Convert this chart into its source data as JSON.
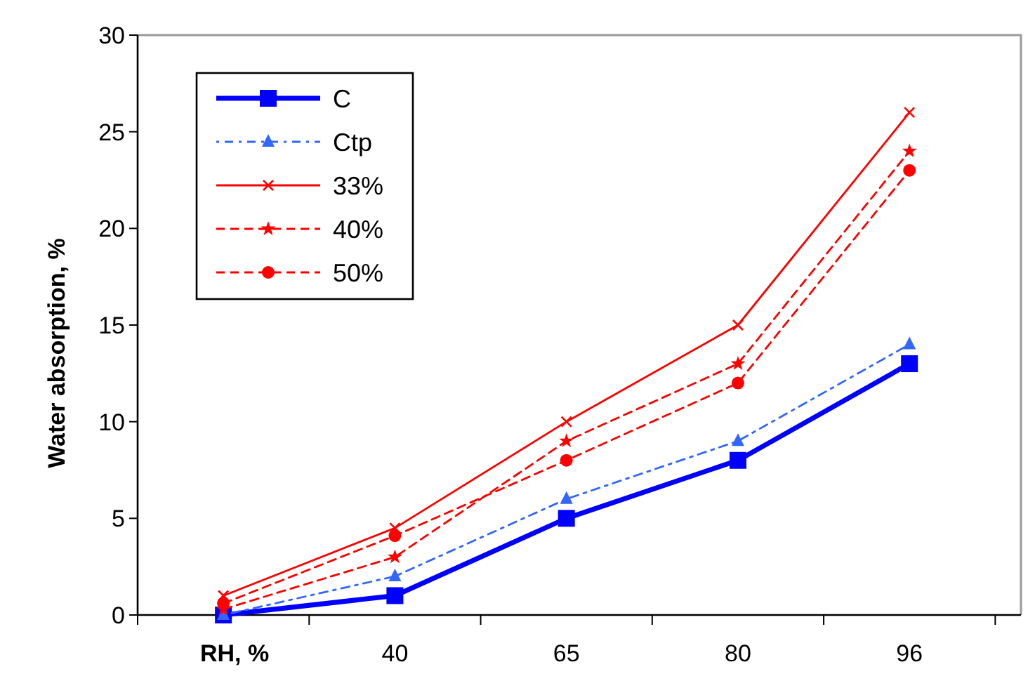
{
  "chart_data": {
    "type": "line",
    "ylabel": "Water absorption,  %",
    "xlabel": "RH,  %",
    "categories": [
      null,
      "40",
      "65",
      "80",
      "96"
    ],
    "ylim": [
      0,
      30
    ],
    "yticks": [
      0,
      5,
      10,
      15,
      20,
      25,
      30
    ],
    "grid": false,
    "legend": "top left",
    "series": [
      {
        "name": "C",
        "color": "#0000ff",
        "marker": "square",
        "line_style": "solid",
        "values": [
          0,
          1,
          5,
          8,
          13
        ]
      },
      {
        "name": "Ctp",
        "color": "#3366ff",
        "marker": "triangle",
        "line_style": "dotted",
        "values": [
          0,
          2,
          6,
          9,
          14
        ]
      },
      {
        "name": "33%",
        "color": "#ff0000",
        "marker": "cross",
        "line_style": "solid",
        "values": [
          1,
          4.5,
          10,
          15,
          26
        ]
      },
      {
        "name": "40%",
        "color": "#ff0000",
        "marker": "star",
        "line_style": "dashed",
        "values": [
          0.3,
          3,
          9,
          13,
          24
        ]
      },
      {
        "name": "50%",
        "color": "#ff0000",
        "marker": "circle",
        "line_style": "dashed",
        "values": [
          0.6,
          4.1,
          8,
          12,
          23
        ]
      }
    ]
  }
}
